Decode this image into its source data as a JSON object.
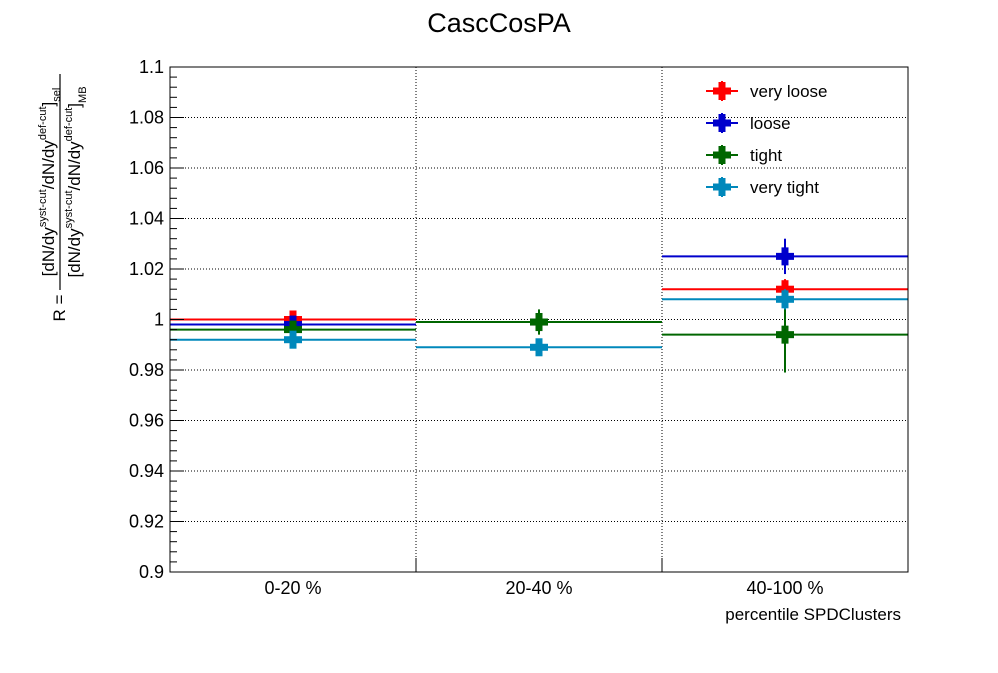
{
  "chart_data": {
    "type": "scatter",
    "title": "CascCosPA",
    "xlabel": "percentile SPDClusters",
    "ylabel": {
      "prefix": "R =",
      "numerator": [
        "[dN/dy",
        "syst-cut",
        "/dN/dy",
        "def-cut",
        "]",
        "sel"
      ],
      "denominator": [
        "[dN/dy",
        "syst-cut",
        "/dN/dy",
        "def-cut",
        "]",
        "MB"
      ]
    },
    "categories": [
      "0-20 %",
      "20-40 %",
      "40-100 %"
    ],
    "ylim": [
      0.9,
      1.1
    ],
    "yticks": [
      "0.9",
      "0.92",
      "0.94",
      "0.96",
      "0.98",
      "1",
      "1.02",
      "1.04",
      "1.06",
      "1.08",
      "1.1"
    ],
    "grid": true,
    "legend_position": "top-right",
    "series": [
      {
        "name": "very loose",
        "color": "#ff0000",
        "values": [
          1.0,
          0.999,
          1.012
        ],
        "errors": [
          0.003,
          0.002,
          0.004
        ]
      },
      {
        "name": "loose",
        "color": "#0000cc",
        "values": [
          0.998,
          0.999,
          1.025
        ],
        "errors": [
          0.002,
          0.002,
          0.007
        ]
      },
      {
        "name": "tight",
        "color": "#006600",
        "values": [
          0.996,
          0.999,
          0.994
        ],
        "errors": [
          0.002,
          0.005,
          0.015
        ]
      },
      {
        "name": "very tight",
        "color": "#0088bb",
        "values": [
          0.992,
          0.989,
          1.008
        ],
        "errors": [
          0.002,
          0.002,
          0.004
        ]
      }
    ]
  }
}
